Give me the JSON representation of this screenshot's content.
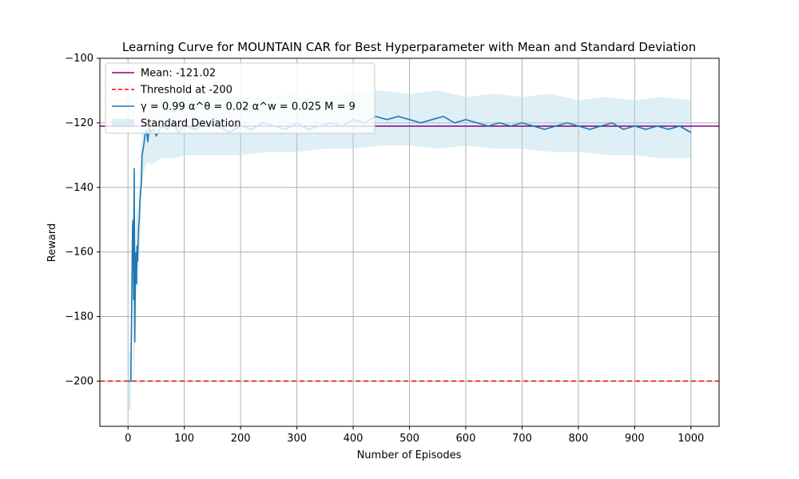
{
  "chart_data": {
    "type": "line",
    "title": "Learning Curve for MOUNTAIN CAR for Best Hyperparameter with Mean and Standard Deviation",
    "xlabel": "Number of Episodes",
    "ylabel": "Reward",
    "xlim": [
      -50,
      1050
    ],
    "ylim": [
      -214,
      -100
    ],
    "xticks": [
      0,
      100,
      200,
      300,
      400,
      500,
      600,
      700,
      800,
      900,
      1000
    ],
    "yticks": [
      -200,
      -180,
      -160,
      -140,
      -120,
      -100
    ],
    "grid": true,
    "legend_position": "top-left",
    "colors": {
      "mean": "#800080",
      "threshold": "#ff0000",
      "series": "#1f77b4",
      "band": "#add8e6"
    },
    "legend": [
      {
        "label": "Mean: -121.02",
        "style": "mean"
      },
      {
        "label": "Threshold at -200",
        "style": "threshold"
      },
      {
        "label": "γ = 0.99 α^θ = 0.02 α^w = 0.025 M = 9",
        "style": "series"
      },
      {
        "label": "Standard Deviation",
        "style": "band"
      }
    ],
    "mean_value": -121.02,
    "threshold_value": -200,
    "series": [
      {
        "name": "γ = 0.99 α^θ = 0.02 α^w = 0.025 M = 9",
        "x": [
          0,
          5,
          8,
          9,
          10,
          11,
          12,
          13,
          14,
          15,
          16,
          17,
          18,
          19,
          20,
          21,
          22,
          23,
          24,
          25,
          27,
          30,
          33,
          35,
          38,
          40,
          45,
          50,
          60,
          70,
          80,
          90,
          100,
          120,
          140,
          160,
          180,
          200,
          220,
          240,
          260,
          280,
          300,
          320,
          340,
          360,
          380,
          400,
          420,
          440,
          460,
          480,
          500,
          520,
          540,
          560,
          580,
          600,
          620,
          640,
          660,
          680,
          700,
          720,
          740,
          760,
          780,
          800,
          820,
          840,
          860,
          880,
          900,
          920,
          940,
          960,
          980,
          1000
        ],
        "values": [
          -200,
          -200,
          -152,
          -150,
          -175,
          -134,
          -188,
          -166,
          -160,
          -170,
          -158,
          -163,
          -157,
          -152,
          -150,
          -145,
          -142,
          -140,
          -138,
          -130,
          -128,
          -124,
          -122,
          -126,
          -121,
          -123,
          -122,
          -124,
          -121,
          -122,
          -120,
          -123,
          -121,
          -122,
          -120,
          -121,
          -123,
          -121,
          -122,
          -120,
          -121,
          -122,
          -120,
          -122,
          -121,
          -120,
          -121,
          -119,
          -120,
          -118,
          -119,
          -118,
          -119,
          -120,
          -119,
          -118,
          -120,
          -119,
          -120,
          -121,
          -120,
          -121,
          -120,
          -121,
          -122,
          -121,
          -120,
          -121,
          -122,
          -121,
          -120,
          -122,
          -121,
          -122,
          -121,
          -122,
          -121,
          -123
        ]
      }
    ],
    "std_band": {
      "x": [
        0,
        5,
        8,
        10,
        12,
        14,
        16,
        18,
        20,
        22,
        25,
        30,
        35,
        40,
        50,
        60,
        80,
        100,
        150,
        200,
        250,
        300,
        350,
        400,
        450,
        500,
        550,
        600,
        650,
        700,
        750,
        800,
        850,
        900,
        950,
        1000
      ],
      "upper": [
        -191,
        -191,
        -140,
        -150,
        -160,
        -150,
        -145,
        -148,
        -140,
        -132,
        -122,
        -116,
        -114,
        -113,
        -113,
        -113,
        -112,
        -112,
        -112,
        -112,
        -112,
        -111,
        -112,
        -111,
        -110,
        -111,
        -110,
        -112,
        -111,
        -112,
        -111,
        -113,
        -112,
        -113,
        -112,
        -113
      ],
      "lower": [
        -209,
        -209,
        -170,
        -200,
        -195,
        -175,
        -172,
        -170,
        -162,
        -155,
        -138,
        -134,
        -132,
        -133,
        -132,
        -131,
        -131,
        -130,
        -130,
        -130,
        -129,
        -129,
        -128,
        -128,
        -127,
        -127,
        -128,
        -127,
        -128,
        -128,
        -129,
        -129,
        -130,
        -130,
        -131,
        -131
      ]
    }
  }
}
